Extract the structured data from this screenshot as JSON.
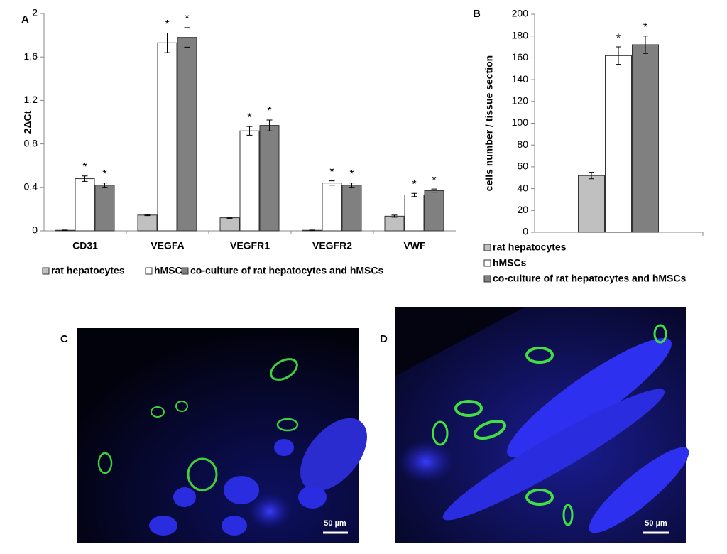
{
  "chart_data": [
    {
      "type": "bar",
      "label": "A",
      "y_label": "2ΔCt",
      "annotation": "*",
      "categories": [
        "CD31",
        "VEGFA",
        "VEGFR1",
        "VEGFR2",
        "VWF"
      ],
      "ylim": [
        0,
        2
      ],
      "yticks": [
        0,
        {
          "value": 0.4,
          "label": "0,4"
        },
        {
          "value": 0.8,
          "label": "0,8"
        },
        {
          "value": 1.2,
          "label": "1,2"
        },
        {
          "value": 1.6,
          "label": "1,6"
        },
        2
      ],
      "legend": "bottom",
      "series": [
        {
          "name": "rat hepatocytes",
          "color": "#c0c0c0",
          "values": [
            0.005,
            0.145,
            0.12,
            0.005,
            0.135
          ],
          "error": [
            0.002,
            0.005,
            0.005,
            0.002,
            0.01
          ],
          "significant": false
        },
        {
          "name": "hMSCs",
          "color": "#ffffff",
          "values": [
            0.48,
            1.73,
            0.92,
            0.44,
            0.33
          ],
          "error": [
            0.025,
            0.09,
            0.04,
            0.02,
            0.015
          ],
          "significant": true
        },
        {
          "name": "co-culture of rat hepatocytes and hMSCs",
          "color": "#808080",
          "values": [
            0.42,
            1.78,
            0.97,
            0.42,
            0.37
          ],
          "error": [
            0.02,
            0.09,
            0.05,
            0.02,
            0.015
          ],
          "significant": true
        }
      ]
    },
    {
      "type": "bar",
      "label": "B",
      "y_label": "cells number / tissue section",
      "annotation": "*",
      "categories": [
        null
      ],
      "ylim": [
        0,
        200
      ],
      "yticks": [
        0,
        20,
        40,
        60,
        80,
        100,
        120,
        140,
        160,
        180,
        200
      ],
      "legend": "bottom",
      "series": [
        {
          "name": "rat hepatocytes",
          "color": "#c0c0c0",
          "values": [
            52
          ],
          "error": [
            3
          ],
          "significant": false
        },
        {
          "name": "hMSCs",
          "color": "#ffffff",
          "values": [
            162
          ],
          "error": [
            8
          ],
          "significant": true
        },
        {
          "name": "co-culture of rat hepatocytes and hMSCs",
          "color": "#808080",
          "values": [
            172
          ],
          "error": [
            8
          ],
          "significant": true
        }
      ]
    }
  ],
  "panels": [
    {
      "label": "C",
      "scale_bar": "50 µm"
    },
    {
      "label": "D",
      "scale_bar": "50 µm"
    }
  ]
}
